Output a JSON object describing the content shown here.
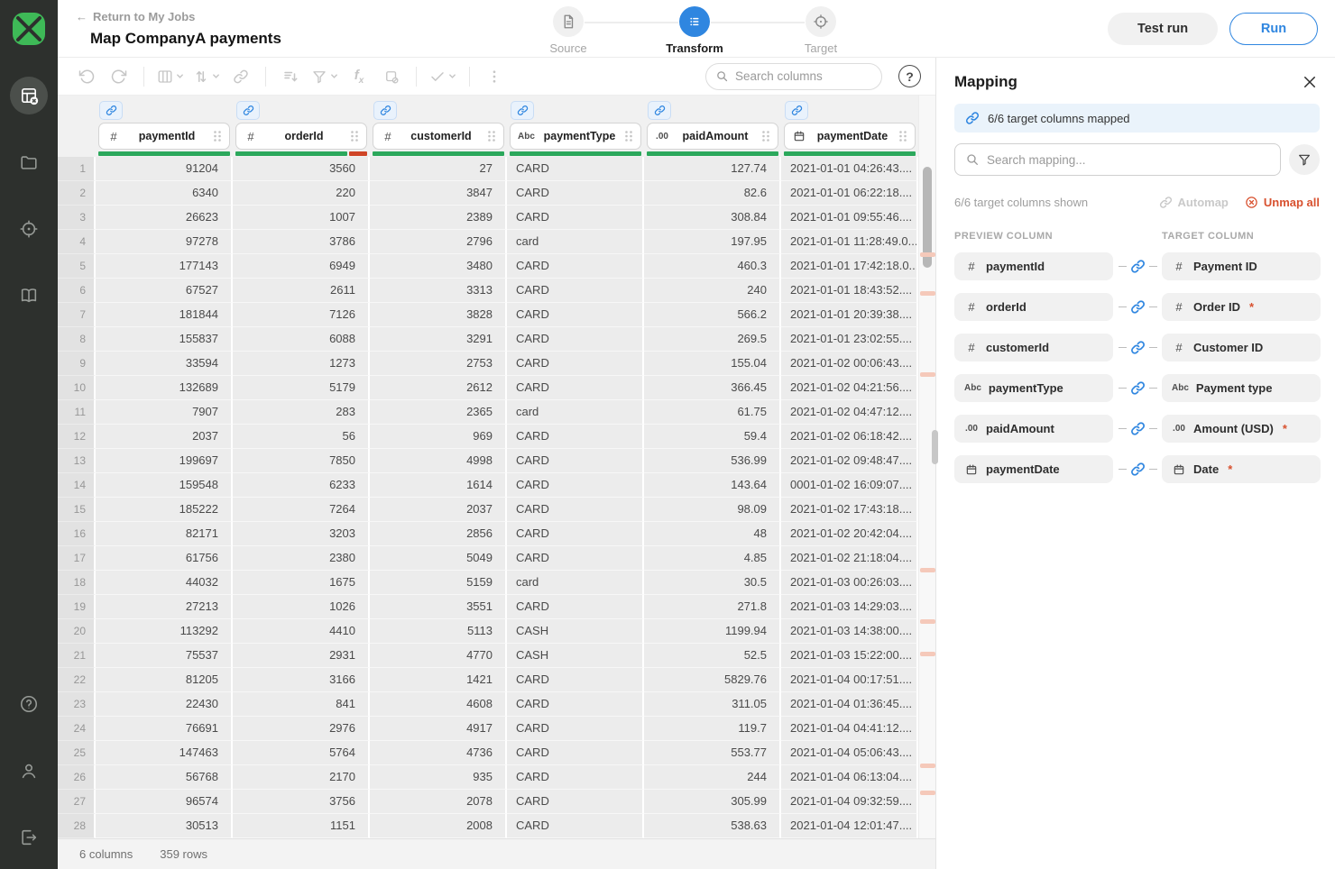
{
  "colors": {
    "accent": "#2f86e0",
    "green": "#2ca85c",
    "red": "#cf4527",
    "marker": "#f5c9ba",
    "logo_green": "#3eb957"
  },
  "icons": {
    "back_arrow": "←"
  },
  "header": {
    "back_label": "Return to My Jobs",
    "title": "Map CompanyA payments",
    "steps": [
      {
        "label": "Source"
      },
      {
        "label": "Transform"
      },
      {
        "label": "Target"
      }
    ],
    "test_run_label": "Test run",
    "run_label": "Run"
  },
  "toolbar": {
    "search_placeholder": "Search columns"
  },
  "table": {
    "columns": [
      {
        "name": "paymentId",
        "type": "number",
        "align": "right",
        "quality": [
          {
            "c": "#2ca85c",
            "f": 1
          }
        ]
      },
      {
        "name": "orderId",
        "type": "number",
        "align": "right",
        "quality": [
          {
            "c": "#2ca85c",
            "f": 0.86
          },
          {
            "c": "#cf4527",
            "f": 0.14
          }
        ]
      },
      {
        "name": "customerId",
        "type": "number",
        "align": "right",
        "quality": [
          {
            "c": "#2ca85c",
            "f": 1
          }
        ]
      },
      {
        "name": "paymentType",
        "type": "text",
        "align": "left",
        "quality": [
          {
            "c": "#2ca85c",
            "f": 1
          }
        ]
      },
      {
        "name": "paidAmount",
        "type": "decimal",
        "align": "right",
        "quality": [
          {
            "c": "#2ca85c",
            "f": 1
          }
        ]
      },
      {
        "name": "paymentDate",
        "type": "date",
        "align": "left",
        "quality": [
          {
            "c": "#2ca85c",
            "f": 1
          }
        ]
      }
    ],
    "rows": [
      [
        "91204",
        "3560",
        "27",
        "CARD",
        "127.74",
        "2021-01-01 04:26:43...."
      ],
      [
        "6340",
        "220",
        "3847",
        "CARD",
        "82.6",
        "2021-01-01 06:22:18...."
      ],
      [
        "26623",
        "1007",
        "2389",
        "CARD",
        "308.84",
        "2021-01-01 09:55:46...."
      ],
      [
        "97278",
        "3786",
        "2796",
        "card",
        "197.95",
        "2021-01-01 11:28:49.0..."
      ],
      [
        "177143",
        "6949",
        "3480",
        "CARD",
        "460.3",
        "2021-01-01 17:42:18.0..."
      ],
      [
        "67527",
        "2611",
        "3313",
        "CARD",
        "240",
        "2021-01-01 18:43:52...."
      ],
      [
        "181844",
        "7126",
        "3828",
        "CARD",
        "566.2",
        "2021-01-01 20:39:38...."
      ],
      [
        "155837",
        "6088",
        "3291",
        "CARD",
        "269.5",
        "2021-01-01 23:02:55...."
      ],
      [
        "33594",
        "1273",
        "2753",
        "CARD",
        "155.04",
        "2021-01-02 00:06:43...."
      ],
      [
        "132689",
        "5179",
        "2612",
        "CARD",
        "366.45",
        "2021-01-02 04:21:56...."
      ],
      [
        "7907",
        "283",
        "2365",
        "card",
        "61.75",
        "2021-01-02 04:47:12...."
      ],
      [
        "2037",
        "56",
        "969",
        "CARD",
        "59.4",
        "2021-01-02 06:18:42...."
      ],
      [
        "199697",
        "7850",
        "4998",
        "CARD",
        "536.99",
        "2021-01-02 09:48:47...."
      ],
      [
        "159548",
        "6233",
        "1614",
        "CARD",
        "143.64",
        "0001-01-02 16:09:07...."
      ],
      [
        "185222",
        "7264",
        "2037",
        "CARD",
        "98.09",
        "2021-01-02 17:43:18...."
      ],
      [
        "82171",
        "3203",
        "2856",
        "CARD",
        "48",
        "2021-01-02 20:42:04...."
      ],
      [
        "61756",
        "2380",
        "5049",
        "CARD",
        "4.85",
        "2021-01-02 21:18:04...."
      ],
      [
        "44032",
        "1675",
        "5159",
        "card",
        "30.5",
        "2021-01-03 00:26:03...."
      ],
      [
        "27213",
        "1026",
        "3551",
        "CARD",
        "271.8",
        "2021-01-03 14:29:03...."
      ],
      [
        "113292",
        "4410",
        "5113",
        "CASH",
        "1199.94",
        "2021-01-03 14:38:00...."
      ],
      [
        "75537",
        "2931",
        "4770",
        "CASH",
        "52.5",
        "2021-01-03 15:22:00...."
      ],
      [
        "81205",
        "3166",
        "1421",
        "CARD",
        "5829.76",
        "2021-01-04 00:17:51...."
      ],
      [
        "22430",
        "841",
        "4608",
        "CARD",
        "311.05",
        "2021-01-04 01:36:45...."
      ],
      [
        "76691",
        "2976",
        "4917",
        "CARD",
        "119.7",
        "2021-01-04 04:41:12...."
      ],
      [
        "147463",
        "5764",
        "4736",
        "CARD",
        "553.77",
        "2021-01-04 05:06:43...."
      ],
      [
        "56768",
        "2170",
        "935",
        "CARD",
        "244",
        "2021-01-04 06:13:04...."
      ],
      [
        "96574",
        "3756",
        "2078",
        "CARD",
        "305.99",
        "2021-01-04 09:32:59...."
      ],
      [
        "30513",
        "1151",
        "2008",
        "CARD",
        "538.63",
        "2021-01-04 12:01:47...."
      ]
    ]
  },
  "statusbar": {
    "columns_label": "6 columns",
    "rows_label": "359 rows"
  },
  "panel": {
    "title": "Mapping",
    "banner": "6/6 target columns mapped",
    "search_placeholder": "Search mapping...",
    "shown_label": "6/6 target columns shown",
    "automap_label": "Automap",
    "unmap_all_label": "Unmap all",
    "preview_header": "PREVIEW COLUMN",
    "target_header": "TARGET COLUMN",
    "rows": [
      {
        "preview": "paymentId",
        "preview_type": "number",
        "target": "Payment ID",
        "target_type": "number",
        "required": false
      },
      {
        "preview": "orderId",
        "preview_type": "number",
        "target": "Order ID",
        "target_type": "number",
        "required": true
      },
      {
        "preview": "customerId",
        "preview_type": "number",
        "target": "Customer ID",
        "target_type": "number",
        "required": false
      },
      {
        "preview": "paymentType",
        "preview_type": "text",
        "target": "Payment type",
        "target_type": "text",
        "required": false
      },
      {
        "preview": "paidAmount",
        "preview_type": "decimal",
        "target": "Amount (USD)",
        "target_type": "decimal",
        "required": true
      },
      {
        "preview": "paymentDate",
        "preview_type": "date",
        "target": "Date",
        "target_type": "date",
        "required": true
      }
    ]
  }
}
